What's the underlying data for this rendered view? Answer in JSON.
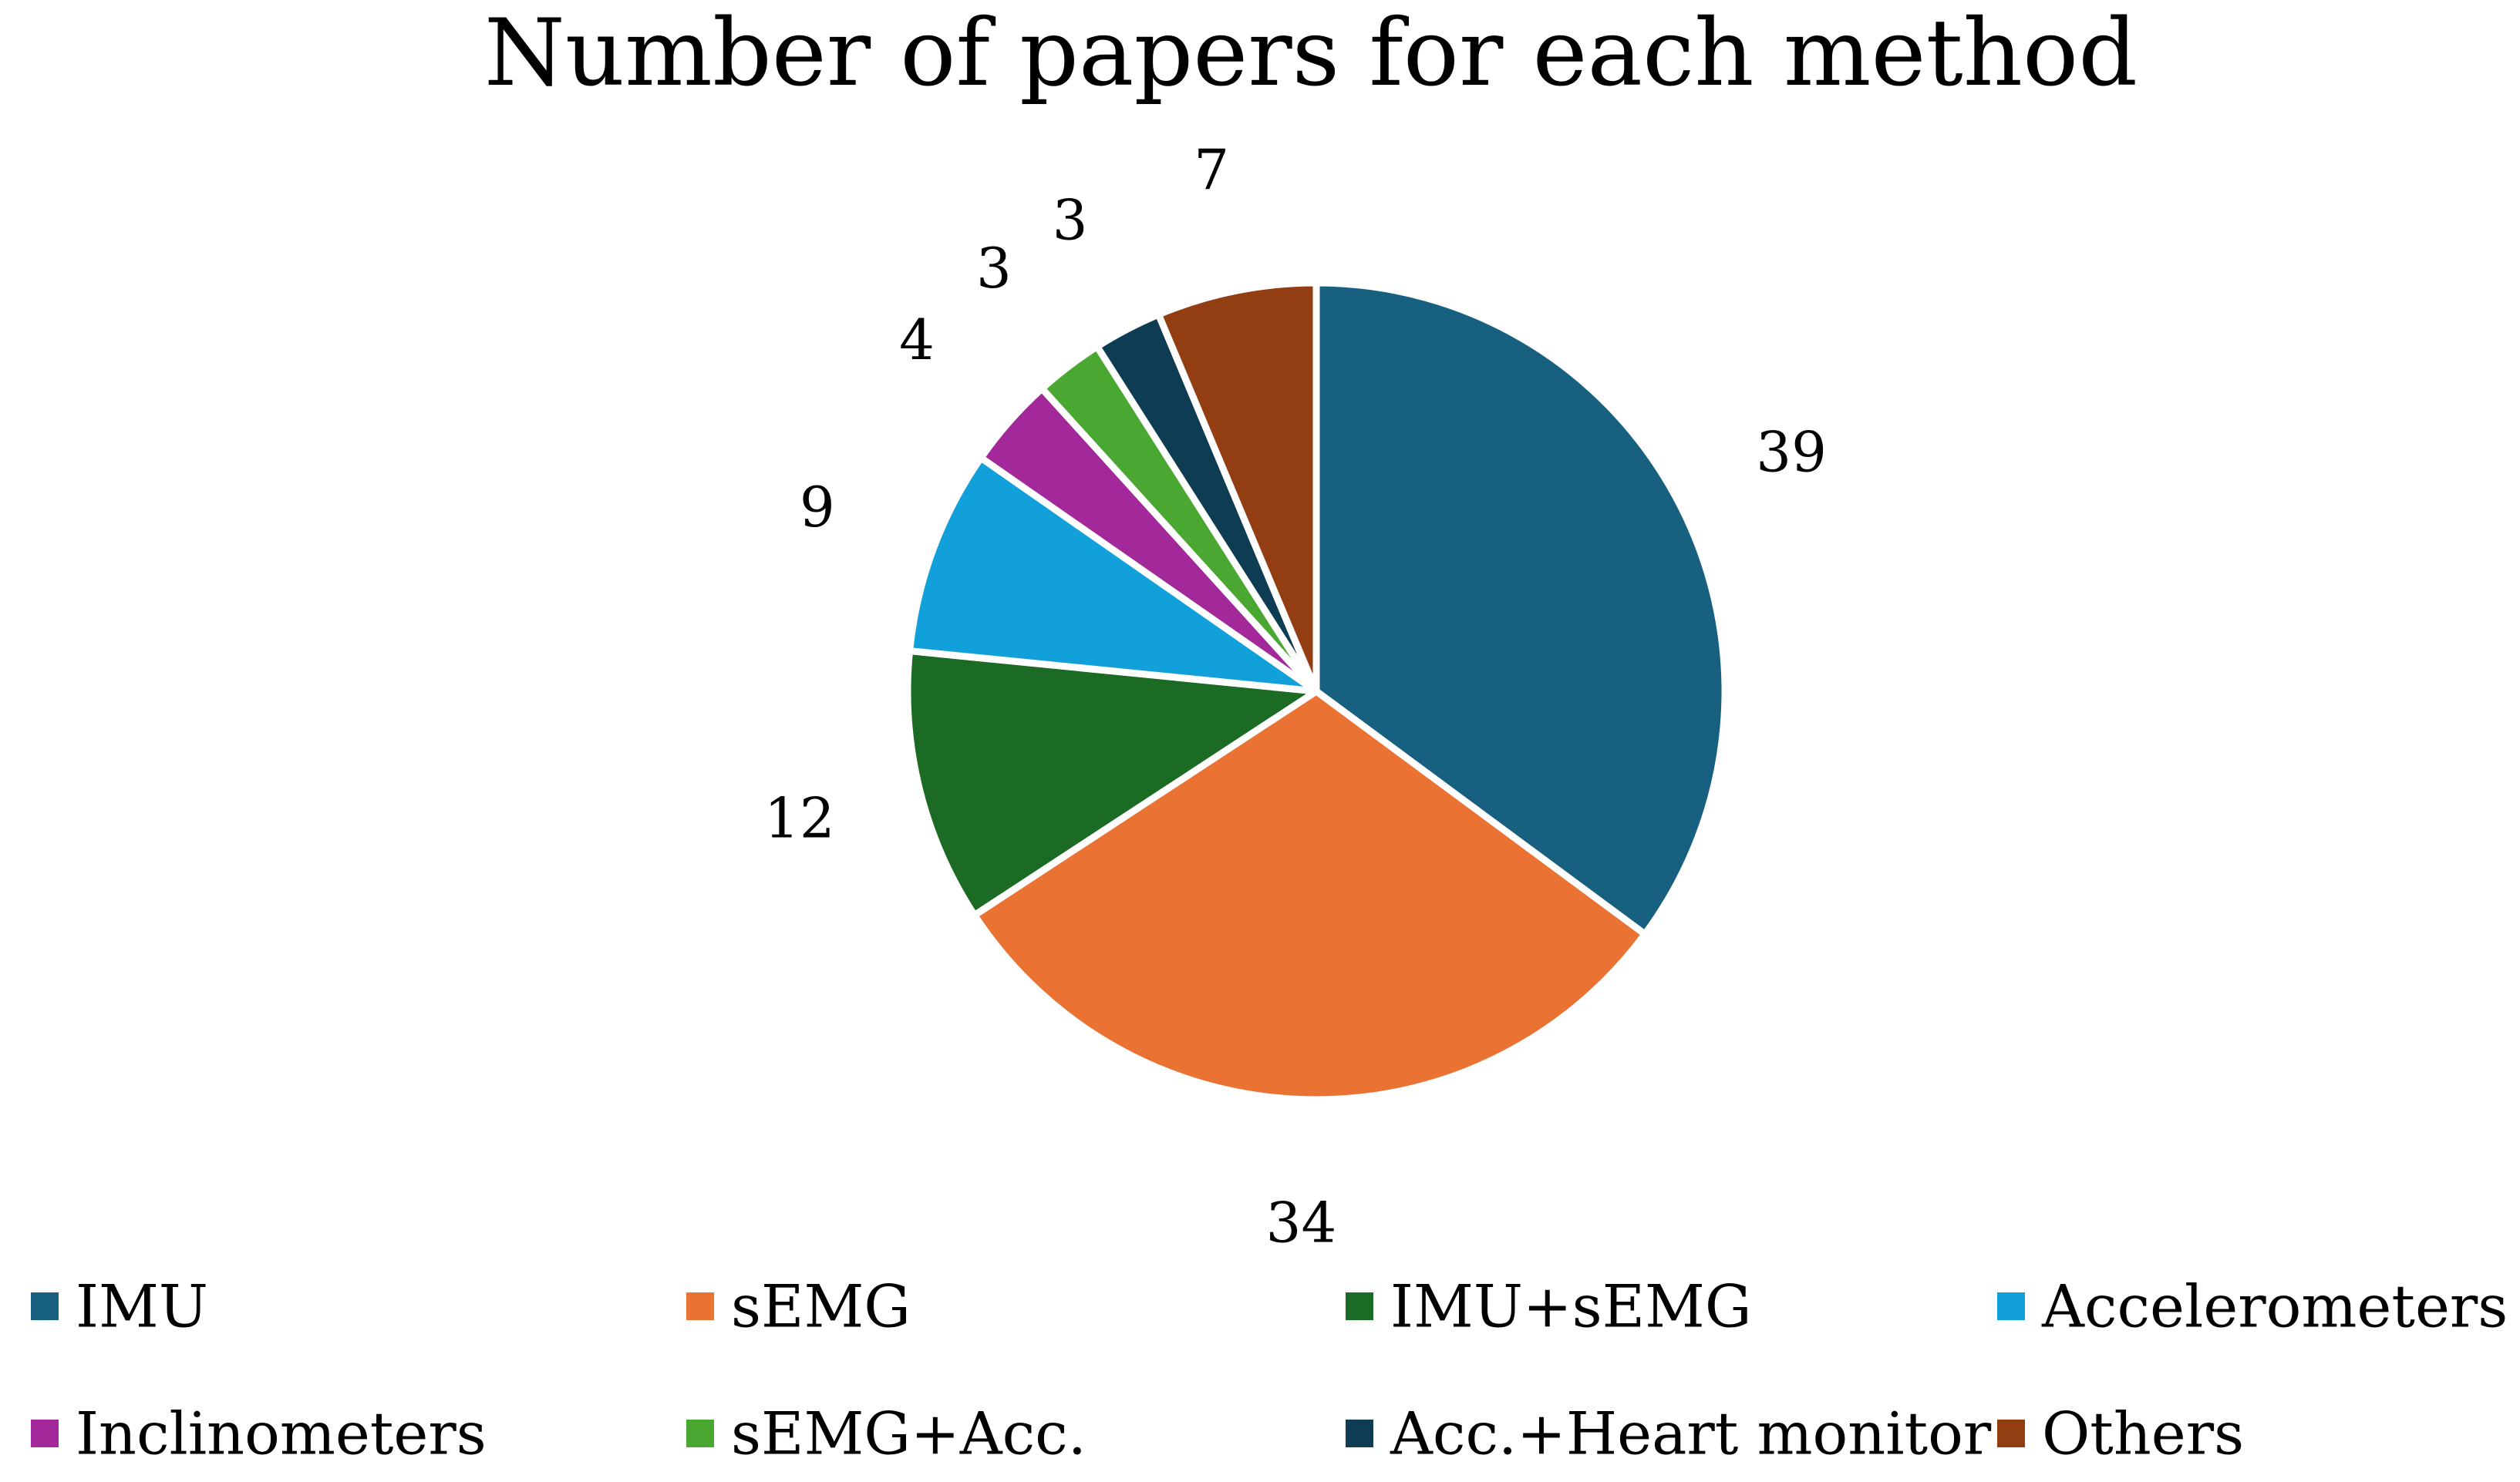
{
  "chart_data": {
    "type": "pie",
    "title": "Number of papers for each method",
    "categories": [
      "IMU",
      "sEMG",
      "IMU+sEMG",
      "Accelerometers",
      "Inclinometers",
      "sEMG+Acc.",
      "Acc.+Heart monitor",
      "Others"
    ],
    "values": [
      39,
      34,
      12,
      9,
      4,
      3,
      3,
      7
    ],
    "colors": [
      "#17607f",
      "#ea7333",
      "#1b6b25",
      "#11a0d9",
      "#a3299a",
      "#4aa832",
      "#0e3c53",
      "#933e12"
    ],
    "slice_border_color": "#ffffff",
    "data_labels": true,
    "legend_position": "bottom"
  }
}
